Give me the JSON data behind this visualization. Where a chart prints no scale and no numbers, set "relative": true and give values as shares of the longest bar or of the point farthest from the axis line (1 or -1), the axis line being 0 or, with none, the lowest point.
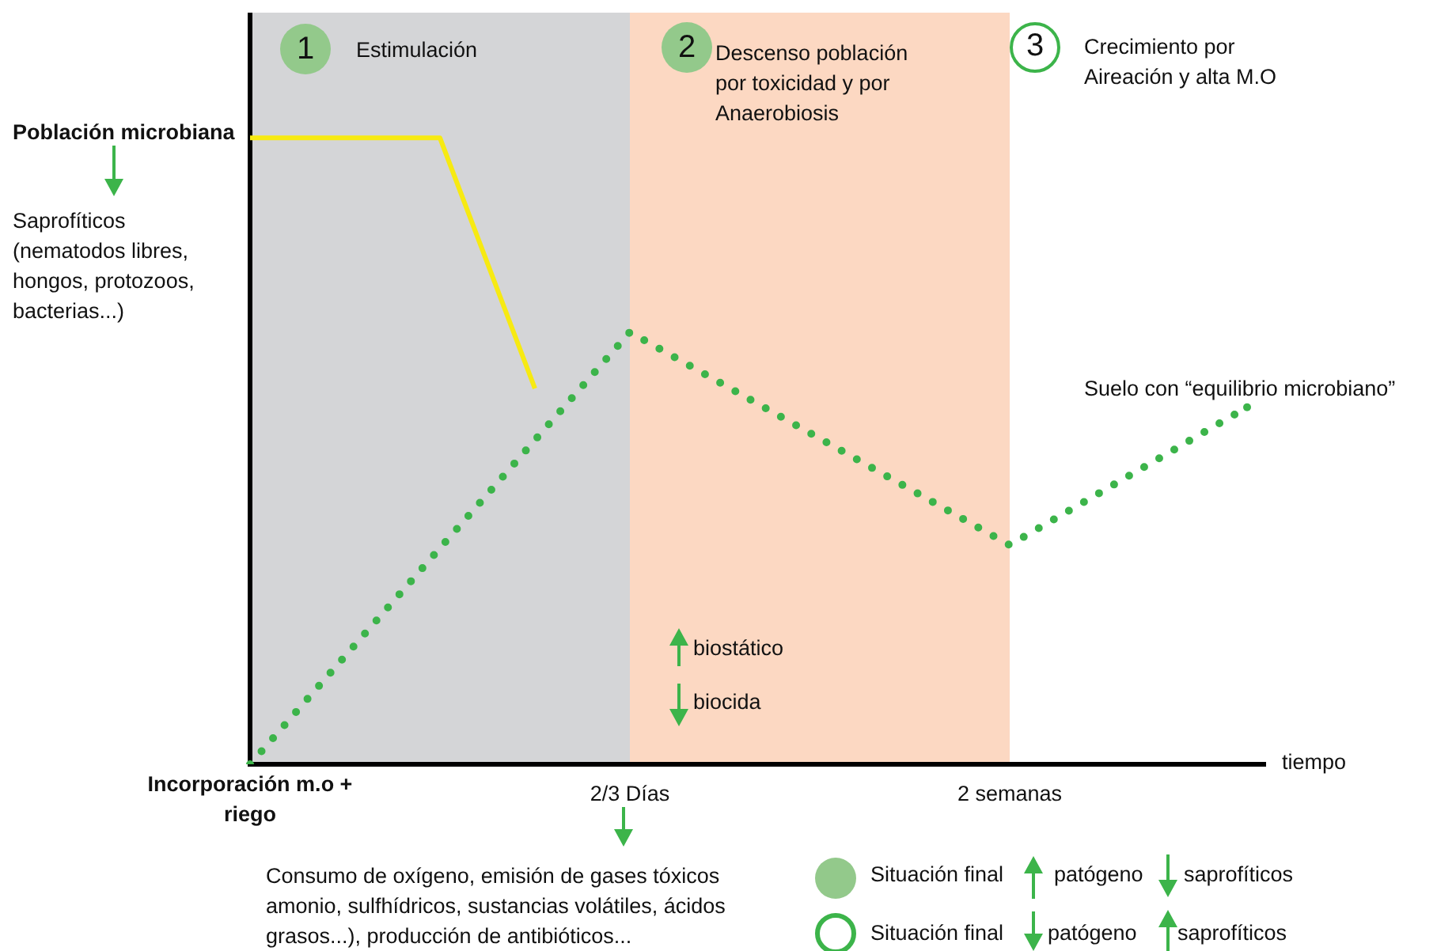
{
  "chart_data": {
    "type": "line",
    "relative": true,
    "ylabel": "Población microbiana",
    "xlabel": "tiempo",
    "categories": [
      "Incorporación m.o + riego",
      null,
      null,
      null,
      null,
      null,
      null,
      null,
      "2/3 Días",
      null,
      null,
      null,
      null,
      null,
      null,
      null,
      "2 semanas",
      null,
      null,
      null,
      null,
      null
    ],
    "bands": [
      {
        "axis": "x",
        "from": "Incorporación m.o + riego",
        "to": "2/3 Días",
        "color": "#d4d5d7"
      },
      {
        "axis": "x",
        "from": "2/3 Días",
        "to": "2 semanas",
        "color": "#fcd8c2"
      }
    ],
    "series": [
      {
        "color": "#f7ea12",
        "line_style": "solid",
        "values": [
          1,
          null,
          null,
          null,
          1,
          null,
          0.6,
          null,
          null,
          null,
          null,
          null,
          null,
          null,
          null,
          null,
          null,
          null,
          null,
          null,
          null,
          null
        ]
      },
      {
        "color": "#3cb44a",
        "line_style": "dotted",
        "values": [
          0,
          null,
          null,
          null,
          null,
          null,
          null,
          null,
          0.69,
          null,
          null,
          null,
          null,
          null,
          null,
          null,
          0.35,
          null,
          null,
          null,
          null,
          0.57
        ]
      }
    ],
    "annotations": [
      "1",
      "Estimulación",
      "2",
      "Descenso población por toxicidad y por Anaerobiosis",
      "3",
      "Crecimiento por Aireación y alta M.O",
      "Saprofíticos (nematodos libres, hongos, protozoos, bacterias...)",
      "Suelo con “equilibrio microbiano”",
      "biostático",
      "biocida",
      "Consumo de oxígeno, emisión de gases tóxicos amonio, sulfhídricos, sustancias volátiles, ácidos grasos...), producción de antibióticos...",
      "Situación final",
      "patógeno",
      "saprofíticos",
      "Situación final",
      "patógeno",
      "saprofíticos"
    ]
  }
}
